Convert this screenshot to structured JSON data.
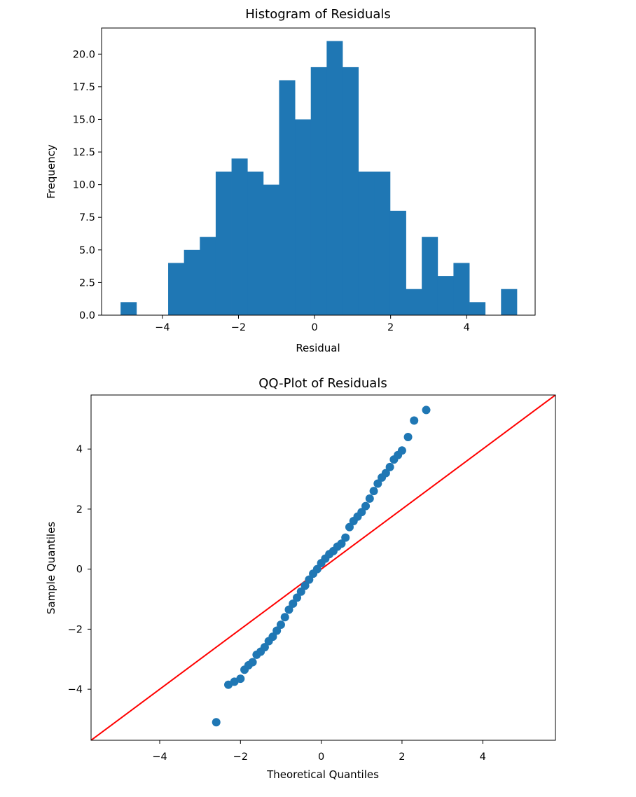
{
  "colors": {
    "bars": "#1f77b4",
    "points": "#1f77b4",
    "reference_line": "#ff0000"
  },
  "chart_data": [
    {
      "type": "bar",
      "title": "Histogram of Residuals",
      "xlabel": "Residual",
      "ylabel": "Frequency",
      "xlim": [
        -5.6,
        5.8
      ],
      "ylim": [
        0,
        22
      ],
      "xticks": [
        -4,
        -2,
        0,
        2,
        4
      ],
      "xtick_labels": [
        "−4",
        "−2",
        "0",
        "2",
        "4"
      ],
      "yticks": [
        0,
        2.5,
        5,
        7.5,
        10,
        12.5,
        15,
        17.5,
        20
      ],
      "ytick_labels": [
        "0.0",
        "2.5",
        "5.0",
        "7.5",
        "10.0",
        "12.5",
        "15.0",
        "17.5",
        "20.0"
      ],
      "bin_start": -5.1,
      "bin_width": 0.4168,
      "counts": [
        1,
        0,
        0,
        4,
        5,
        6,
        11,
        12,
        11,
        10,
        18,
        15,
        19,
        21,
        19,
        11,
        11,
        8,
        2,
        6,
        3,
        4,
        1,
        0,
        2
      ],
      "grid": false
    },
    {
      "type": "scatter",
      "title": "QQ-Plot of Residuals",
      "xlabel": "Theoretical Quantiles",
      "ylabel": "Sample Quantiles",
      "xlim": [
        -5.7,
        5.8
      ],
      "ylim": [
        -5.7,
        5.8
      ],
      "xticks": [
        -4,
        -2,
        0,
        2,
        4
      ],
      "xtick_labels": [
        "−4",
        "−2",
        "0",
        "2",
        "4"
      ],
      "yticks": [
        -4,
        -2,
        0,
        2,
        4
      ],
      "ytick_labels": [
        "−4",
        "−2",
        "0",
        "2",
        "4"
      ],
      "reference_line": {
        "slope": 1,
        "intercept": 0
      },
      "points": {
        "x": [
          -2.6,
          -2.3,
          -2.15,
          -2.0,
          -1.9,
          -1.8,
          -1.7,
          -1.6,
          -1.5,
          -1.4,
          -1.3,
          -1.2,
          -1.1,
          -1.0,
          -0.9,
          -0.8,
          -0.7,
          -0.6,
          -0.5,
          -0.4,
          -0.3,
          -0.2,
          -0.1,
          0.0,
          0.1,
          0.2,
          0.3,
          0.4,
          0.5,
          0.6,
          0.7,
          0.8,
          0.9,
          1.0,
          1.1,
          1.2,
          1.3,
          1.4,
          1.5,
          1.6,
          1.7,
          1.8,
          1.9,
          2.0,
          2.15,
          2.3,
          2.6
        ],
        "y": [
          -5.1,
          -3.85,
          -3.75,
          -3.65,
          -3.35,
          -3.2,
          -3.1,
          -2.85,
          -2.75,
          -2.6,
          -2.4,
          -2.25,
          -2.05,
          -1.85,
          -1.6,
          -1.35,
          -1.15,
          -0.95,
          -0.75,
          -0.55,
          -0.35,
          -0.15,
          0.0,
          0.2,
          0.35,
          0.5,
          0.6,
          0.75,
          0.85,
          1.05,
          1.4,
          1.6,
          1.75,
          1.9,
          2.1,
          2.35,
          2.6,
          2.85,
          3.05,
          3.2,
          3.4,
          3.65,
          3.8,
          3.95,
          4.4,
          4.95,
          5.3
        ]
      },
      "grid": false
    }
  ]
}
